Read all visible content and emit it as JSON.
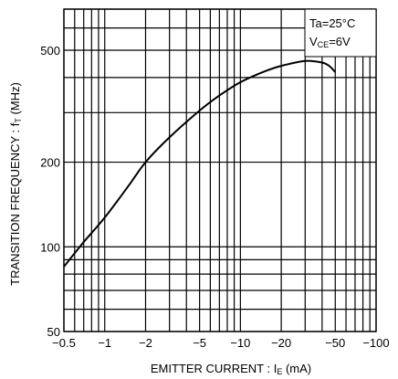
{
  "chart_data": {
    "type": "line",
    "title": "",
    "xlabel": {
      "main": "EMITTER  CURRENT : I",
      "sub": "E",
      "tail": " (mA)"
    },
    "ylabel": {
      "main": "TRANSITION  FREQUENCY : f",
      "sub": "T",
      "tail": " (MHz)"
    },
    "x_scale": "log",
    "y_scale": "log",
    "xlim": [
      -0.5,
      -100
    ],
    "ylim": [
      50,
      700
    ],
    "grid": true,
    "x_ticks": [
      {
        "value": -0.5,
        "label": "−0.5"
      },
      {
        "value": -1,
        "label": "−1"
      },
      {
        "value": -2,
        "label": "−2"
      },
      {
        "value": -5,
        "label": "−5"
      },
      {
        "value": -10,
        "label": "−10"
      },
      {
        "value": -20,
        "label": "−20"
      },
      {
        "value": -50,
        "label": "−50"
      },
      {
        "value": -100,
        "label": "−100"
      }
    ],
    "y_ticks": [
      {
        "value": 50,
        "label": "50"
      },
      {
        "value": 100,
        "label": "100"
      },
      {
        "value": 200,
        "label": "200"
      },
      {
        "value": 500,
        "label": "500"
      }
    ],
    "x_grid": [
      -0.5,
      -0.6,
      -0.7,
      -0.8,
      -0.9,
      -1,
      -2,
      -3,
      -4,
      -5,
      -6,
      -7,
      -8,
      -9,
      -10,
      -20,
      -30,
      -40,
      -50,
      -60,
      -70,
      -80,
      -90,
      -100
    ],
    "y_grid": [
      50,
      60,
      70,
      80,
      90,
      100,
      200,
      300,
      400,
      500,
      600,
      700
    ],
    "conditions": {
      "line1": {
        "main": "Ta=25°C",
        "sub": "",
        "tail": ""
      },
      "line2": {
        "main": "V",
        "sub": "CE",
        "tail": "=6V"
      },
      "placement": "top-right"
    },
    "series": [
      {
        "x": [
          -0.5,
          -0.7,
          -1,
          -1.5,
          -2,
          -3,
          -5,
          -7,
          -10,
          -15,
          -20,
          -30,
          -40,
          -45,
          -50
        ],
        "y": [
          85,
          104,
          127,
          165,
          200,
          245,
          305,
          345,
          385,
          420,
          440,
          458,
          452,
          440,
          418
        ]
      }
    ]
  }
}
